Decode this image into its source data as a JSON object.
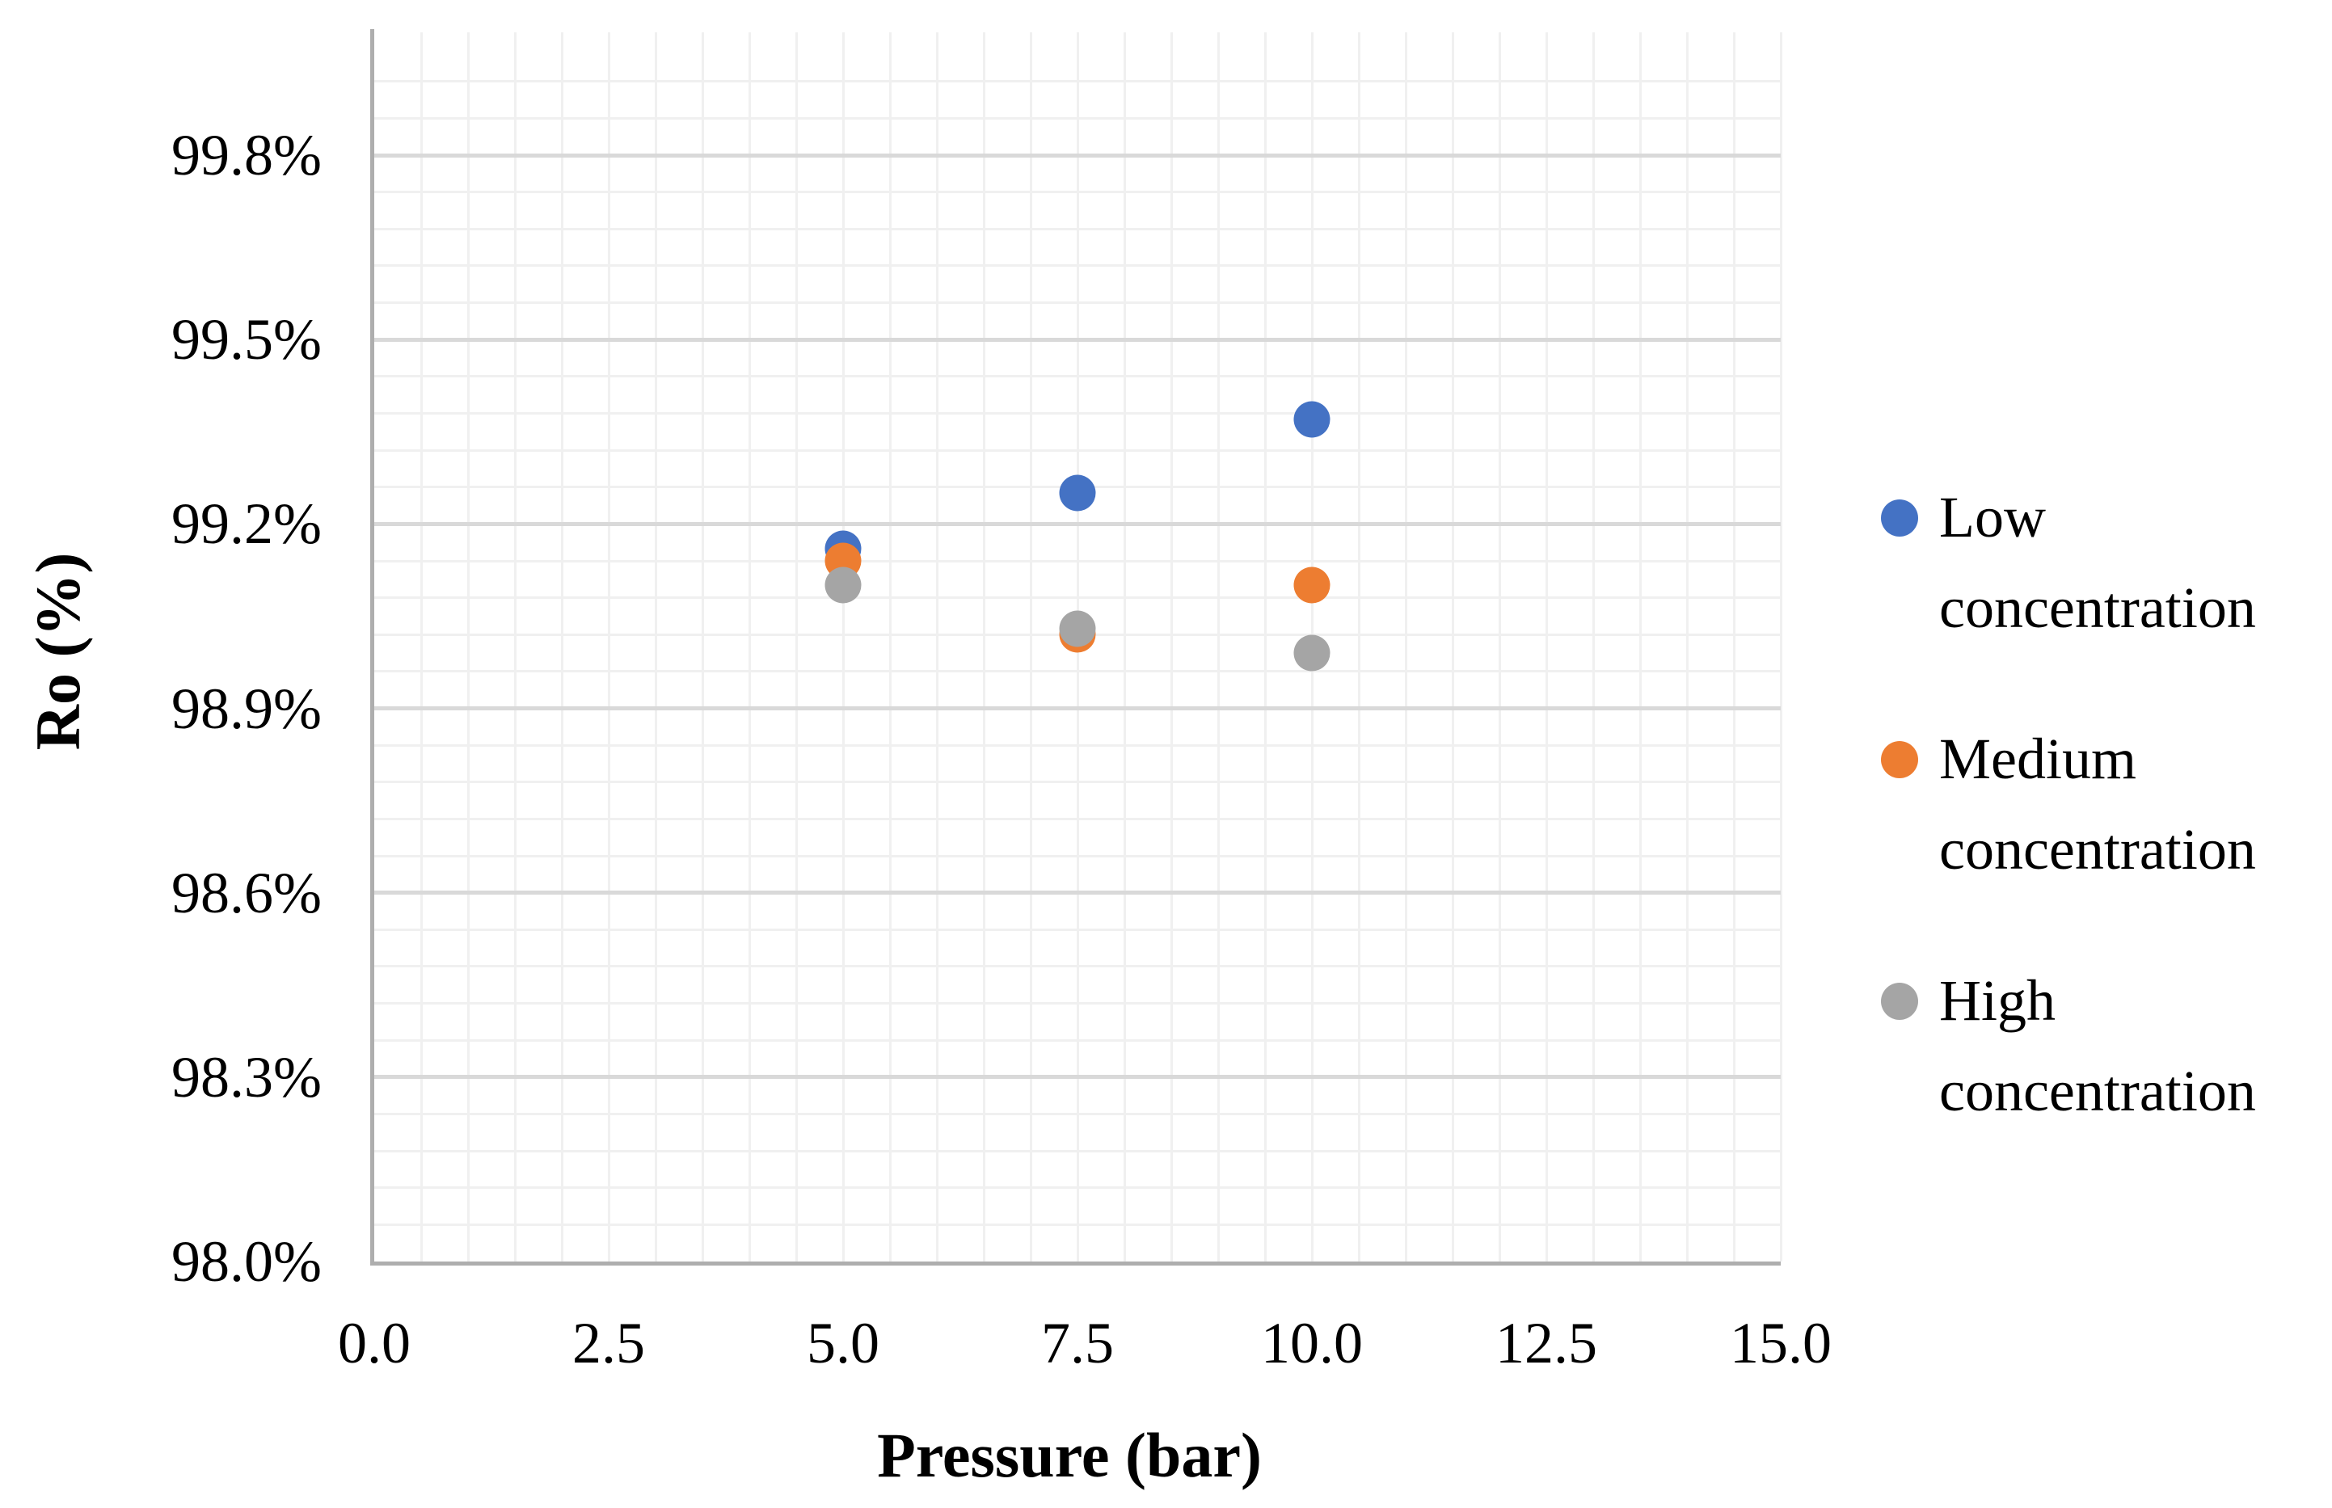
{
  "chart_data": {
    "type": "scatter",
    "title": "",
    "xlabel": "Pressure (bar)",
    "ylabel": "Ro (%)",
    "xlim": [
      0,
      15
    ],
    "ylim": [
      98.0,
      100.0
    ],
    "x_major_unit": 2.5,
    "x_minor_unit": 0.5,
    "y_major_unit": 0.3,
    "y_minor_unit": 0.06,
    "grid": true,
    "legend_position": "right",
    "x_ticks": [
      0.0,
      2.5,
      5.0,
      7.5,
      10.0,
      12.5,
      15.0
    ],
    "x_tick_labels": [
      "0.0",
      "2.5",
      "5.0",
      "7.5",
      "10.0",
      "12.5",
      "15.0"
    ],
    "y_ticks": [
      98.0,
      98.3,
      98.6,
      98.9,
      99.2,
      99.5,
      99.8
    ],
    "y_tick_labels": [
      "98.0%",
      "98.3%",
      "98.6%",
      "98.9%",
      "99.2%",
      "99.5%",
      "99.8%"
    ],
    "series": [
      {
        "name": "Low concentration",
        "color": "#4472C4",
        "points": [
          [
            5,
            99.16
          ],
          [
            7.5,
            99.25
          ],
          [
            10,
            99.37
          ]
        ]
      },
      {
        "name": "Medium concentration",
        "color": "#ED7D31",
        "points": [
          [
            5,
            99.14
          ],
          [
            7.5,
            99.02
          ],
          [
            10,
            99.1
          ]
        ]
      },
      {
        "name": "High concentration",
        "color": "#A5A5A5",
        "points": [
          [
            5,
            99.1
          ],
          [
            7.5,
            99.03
          ],
          [
            10,
            98.99
          ]
        ]
      }
    ]
  },
  "colors": {
    "minor_grid": "#f0f0f0",
    "major_grid": "#d9d9d9",
    "axis_line": "#aeaeae",
    "text": "#000000",
    "background": "#ffffff"
  }
}
